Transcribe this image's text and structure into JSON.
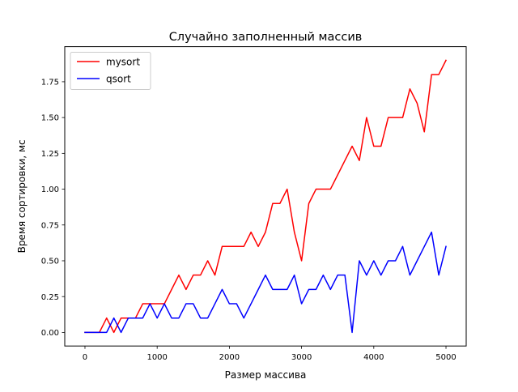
{
  "chart_data": {
    "type": "line",
    "title": "Случайно заполненный массив",
    "xlabel": "Размер массива",
    "ylabel": "Время сортировки, мс",
    "xlim": [
      -280,
      5280
    ],
    "ylim": [
      -0.095,
      1.995
    ],
    "xticks": [
      0,
      1000,
      2000,
      3000,
      4000,
      5000
    ],
    "xtick_labels": [
      "0",
      "1000",
      "2000",
      "3000",
      "4000",
      "5000"
    ],
    "yticks": [
      0.0,
      0.25,
      0.5,
      0.75,
      1.0,
      1.25,
      1.5,
      1.75
    ],
    "ytick_labels": [
      "0.00",
      "0.25",
      "0.50",
      "0.75",
      "1.00",
      "1.25",
      "1.50",
      "1.75"
    ],
    "grid": false,
    "legend_position": "upper left",
    "x": [
      0,
      100,
      200,
      300,
      400,
      500,
      600,
      700,
      800,
      900,
      1000,
      1100,
      1200,
      1300,
      1400,
      1500,
      1600,
      1700,
      1800,
      1900,
      2000,
      2100,
      2200,
      2300,
      2400,
      2500,
      2600,
      2700,
      2800,
      2900,
      3000,
      3100,
      3200,
      3300,
      3400,
      3500,
      3600,
      3700,
      3800,
      3900,
      4000,
      4100,
      4200,
      4300,
      4400,
      4500,
      4600,
      4700,
      4800,
      4900,
      5000
    ],
    "series": [
      {
        "name": "mysort",
        "color": "#ff0000",
        "values": [
          0,
          0,
          0,
          0.1,
          0,
          0.1,
          0.1,
          0.1,
          0.2,
          0.2,
          0.2,
          0.2,
          0.3,
          0.4,
          0.3,
          0.4,
          0.4,
          0.5,
          0.4,
          0.6,
          0.6,
          0.6,
          0.6,
          0.7,
          0.6,
          0.7,
          0.9,
          0.9,
          1.0,
          0.7,
          0.5,
          0.9,
          1.0,
          1.0,
          1.0,
          1.1,
          1.2,
          1.3,
          1.2,
          1.5,
          1.3,
          1.3,
          1.5,
          1.5,
          1.5,
          1.7,
          1.6,
          1.4,
          1.8,
          1.8,
          1.9
        ]
      },
      {
        "name": "qsort",
        "color": "#0000ff",
        "values": [
          0,
          0,
          0,
          0,
          0.1,
          0,
          0.1,
          0.1,
          0.1,
          0.2,
          0.1,
          0.2,
          0.1,
          0.1,
          0.2,
          0.2,
          0.1,
          0.1,
          0.2,
          0.3,
          0.2,
          0.2,
          0.1,
          0.2,
          0.3,
          0.4,
          0.3,
          0.3,
          0.3,
          0.4,
          0.2,
          0.3,
          0.3,
          0.4,
          0.3,
          0.4,
          0.4,
          0,
          0.5,
          0.4,
          0.5,
          0.4,
          0.5,
          0.5,
          0.6,
          0.4,
          0.5,
          0.6,
          0.7,
          0.4,
          0.6
        ]
      }
    ]
  }
}
